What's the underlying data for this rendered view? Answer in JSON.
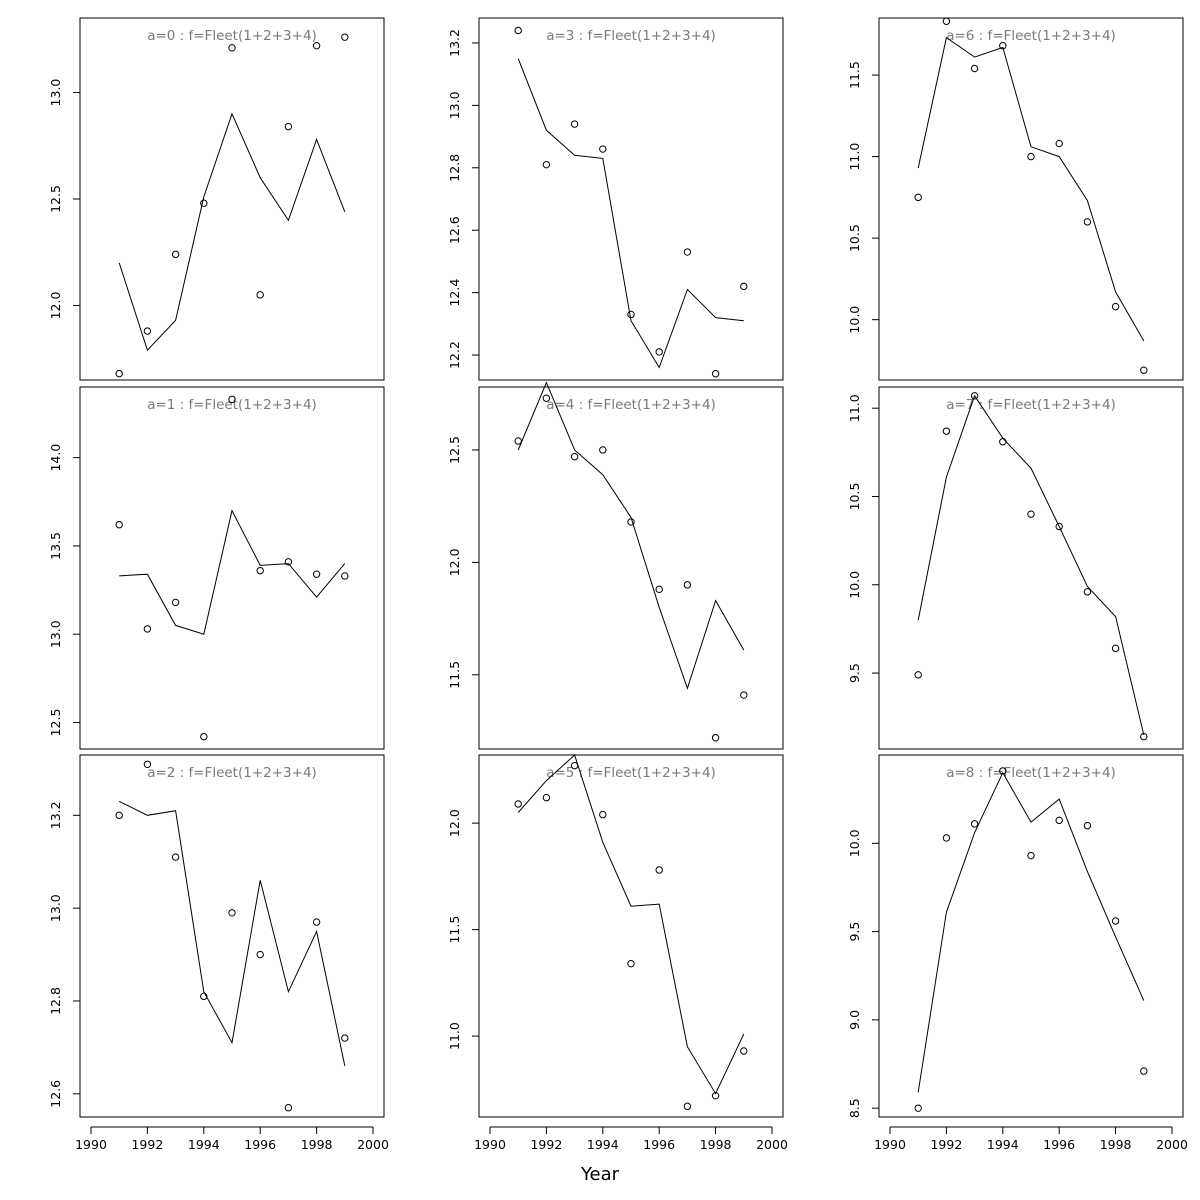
{
  "figure": {
    "xlabel": "Year"
  },
  "chart_data": [
    {
      "type": "line",
      "title": "a=0 : f=Fleet(1+2+3+4)",
      "xlabel": "",
      "ylabel": "",
      "xlim": [
        1990,
        2000
      ],
      "ylim": [
        11.65,
        13.35
      ],
      "yticks": [
        "12.0",
        "12.5",
        "13.0"
      ],
      "show_xaxis": false,
      "x": [
        1991,
        1992,
        1993,
        1994,
        1995,
        1996,
        1997,
        1998,
        1999
      ],
      "series": [
        {
          "name": "observed",
          "style": "points",
          "values": [
            11.68,
            11.88,
            12.24,
            12.48,
            13.21,
            12.05,
            12.84,
            13.22,
            13.26
          ]
        },
        {
          "name": "fitted",
          "style": "line",
          "values": [
            12.2,
            11.79,
            11.93,
            12.51,
            12.9,
            12.6,
            12.4,
            12.78,
            12.44
          ]
        }
      ]
    },
    {
      "type": "line",
      "title": "a=1 : f=Fleet(1+2+3+4)",
      "xlabel": "",
      "ylabel": "",
      "xlim": [
        1990,
        2000
      ],
      "ylim": [
        12.35,
        14.4
      ],
      "yticks": [
        "12.5",
        "13.0",
        "13.5",
        "14.0"
      ],
      "show_xaxis": false,
      "x": [
        1991,
        1992,
        1993,
        1994,
        1995,
        1996,
        1997,
        1998,
        1999
      ],
      "series": [
        {
          "name": "observed",
          "style": "points",
          "values": [
            13.62,
            13.03,
            13.18,
            12.42,
            14.33,
            13.36,
            13.41,
            13.34,
            13.33
          ]
        },
        {
          "name": "fitted",
          "style": "line",
          "values": [
            13.33,
            13.34,
            13.05,
            13.0,
            13.7,
            13.39,
            13.4,
            13.21,
            13.4
          ]
        }
      ]
    },
    {
      "type": "line",
      "title": "a=2 : f=Fleet(1+2+3+4)",
      "xlabel": "",
      "ylabel": "",
      "xlim": [
        1990,
        2000
      ],
      "ylim": [
        12.55,
        13.33
      ],
      "yticks": [
        "12.6",
        "12.8",
        "13.0",
        "13.2"
      ],
      "show_xaxis": true,
      "xticks": [
        "1990",
        "1992",
        "1994",
        "1996",
        "1998",
        "2000"
      ],
      "x": [
        1991,
        1992,
        1993,
        1994,
        1995,
        1996,
        1997,
        1998,
        1999
      ],
      "series": [
        {
          "name": "observed",
          "style": "points",
          "values": [
            13.2,
            13.31,
            13.11,
            12.81,
            12.99,
            12.9,
            12.57,
            12.97,
            12.72
          ]
        },
        {
          "name": "fitted",
          "style": "line",
          "values": [
            13.23,
            13.2,
            13.21,
            12.82,
            12.71,
            13.06,
            12.82,
            12.95,
            12.66
          ]
        }
      ]
    },
    {
      "type": "line",
      "title": "a=3 : f=Fleet(1+2+3+4)",
      "xlabel": "",
      "ylabel": "",
      "xlim": [
        1990,
        2000
      ],
      "ylim": [
        12.12,
        13.28
      ],
      "yticks": [
        "12.2",
        "12.4",
        "12.6",
        "12.8",
        "13.0",
        "13.2"
      ],
      "show_xaxis": false,
      "x": [
        1991,
        1992,
        1993,
        1994,
        1995,
        1996,
        1997,
        1998,
        1999
      ],
      "series": [
        {
          "name": "observed",
          "style": "points",
          "values": [
            13.24,
            12.81,
            12.94,
            12.86,
            12.33,
            12.21,
            12.53,
            12.14,
            12.42
          ]
        },
        {
          "name": "fitted",
          "style": "line",
          "values": [
            13.15,
            12.92,
            12.84,
            12.83,
            12.31,
            12.16,
            12.41,
            12.32,
            12.31
          ]
        }
      ]
    },
    {
      "type": "line",
      "title": "a=4 : f=Fleet(1+2+3+4)",
      "xlabel": "",
      "ylabel": "",
      "xlim": [
        1990,
        2000
      ],
      "ylim": [
        11.17,
        12.78
      ],
      "yticks": [
        "11.5",
        "12.0",
        "12.5"
      ],
      "show_xaxis": false,
      "x": [
        1991,
        1992,
        1993,
        1994,
        1995,
        1996,
        1997,
        1998,
        1999
      ],
      "series": [
        {
          "name": "observed",
          "style": "points",
          "values": [
            12.54,
            12.73,
            12.47,
            12.5,
            12.18,
            11.88,
            11.9,
            11.22,
            11.41
          ]
        },
        {
          "name": "fitted",
          "style": "line",
          "values": [
            12.5,
            12.8,
            12.5,
            12.39,
            12.2,
            11.8,
            11.44,
            11.83,
            11.61
          ]
        }
      ]
    },
    {
      "type": "line",
      "title": "a=5 : f=Fleet(1+2+3+4)",
      "xlabel": "",
      "ylabel": "",
      "xlim": [
        1990,
        2000
      ],
      "ylim": [
        10.62,
        12.32
      ],
      "yticks": [
        "11.0",
        "11.5",
        "12.0"
      ],
      "show_xaxis": true,
      "xticks": [
        "1990",
        "1992",
        "1994",
        "1996",
        "1998",
        "2000"
      ],
      "x": [
        1991,
        1992,
        1993,
        1994,
        1995,
        1996,
        1997,
        1998,
        1999
      ],
      "series": [
        {
          "name": "observed",
          "style": "points",
          "values": [
            12.09,
            12.12,
            12.27,
            12.04,
            11.34,
            11.78,
            10.67,
            10.72,
            10.93
          ]
        },
        {
          "name": "fitted",
          "style": "line",
          "values": [
            12.05,
            12.2,
            12.32,
            11.91,
            11.61,
            11.62,
            10.95,
            10.73,
            11.01
          ]
        }
      ]
    },
    {
      "type": "line",
      "title": "a=6 : f=Fleet(1+2+3+4)",
      "xlabel": "",
      "ylabel": "",
      "xlim": [
        1990,
        2000
      ],
      "ylim": [
        9.63,
        11.85
      ],
      "yticks": [
        "10.0",
        "10.5",
        "11.0",
        "11.5"
      ],
      "show_xaxis": false,
      "x": [
        1991,
        1992,
        1993,
        1994,
        1995,
        1996,
        1997,
        1998,
        1999
      ],
      "series": [
        {
          "name": "observed",
          "style": "points",
          "values": [
            10.75,
            11.83,
            11.54,
            11.68,
            11.0,
            11.08,
            10.6,
            10.08,
            9.69
          ]
        },
        {
          "name": "fitted",
          "style": "line",
          "values": [
            10.93,
            11.73,
            11.61,
            11.67,
            11.06,
            11.0,
            10.73,
            10.17,
            9.87
          ]
        }
      ]
    },
    {
      "type": "line",
      "title": "a=7 : f=Fleet(1+2+3+4)",
      "xlabel": "",
      "ylabel": "",
      "xlim": [
        1990,
        2000
      ],
      "ylim": [
        9.07,
        11.12
      ],
      "yticks": [
        "9.5",
        "10.0",
        "10.5",
        "11.0"
      ],
      "show_xaxis": false,
      "x": [
        1991,
        1992,
        1993,
        1994,
        1995,
        1996,
        1997,
        1998,
        1999
      ],
      "series": [
        {
          "name": "observed",
          "style": "points",
          "values": [
            9.49,
            10.87,
            11.07,
            10.81,
            10.4,
            10.33,
            9.96,
            9.64,
            9.14
          ]
        },
        {
          "name": "fitted",
          "style": "line",
          "values": [
            9.8,
            10.61,
            11.07,
            10.83,
            10.66,
            10.33,
            9.99,
            9.82,
            9.15
          ]
        }
      ]
    },
    {
      "type": "line",
      "title": "a=8 : f=Fleet(1+2+3+4)",
      "xlabel": "",
      "ylabel": "",
      "xlim": [
        1990,
        2000
      ],
      "ylim": [
        8.45,
        10.5
      ],
      "yticks": [
        "8.5",
        "9.0",
        "9.5",
        "10.0"
      ],
      "show_xaxis": true,
      "xticks": [
        "1990",
        "1992",
        "1994",
        "1996",
        "1998",
        "2000"
      ],
      "x": [
        1991,
        1992,
        1993,
        1994,
        1995,
        1996,
        1997,
        1998,
        1999
      ],
      "series": [
        {
          "name": "observed",
          "style": "points",
          "values": [
            8.5,
            10.03,
            10.11,
            10.41,
            9.93,
            10.13,
            10.1,
            9.56,
            8.71
          ]
        },
        {
          "name": "fitted",
          "style": "line",
          "values": [
            8.59,
            9.61,
            10.06,
            10.4,
            10.12,
            10.25,
            9.84,
            9.47,
            9.11
          ]
        }
      ]
    }
  ]
}
